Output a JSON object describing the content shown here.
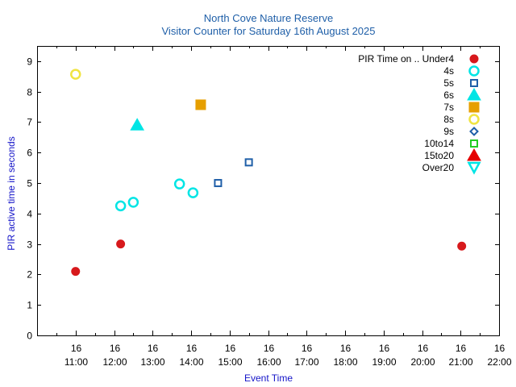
{
  "chart_data": {
    "type": "scatter",
    "title": "North Cove Nature Reserve",
    "subtitle": "Visitor Counter for Saturday 16th August 2025",
    "xlabel": "Event Time",
    "ylabel": "PIR active time in seconds",
    "xlim_hours": [
      10.0,
      22.0
    ],
    "ylim": [
      0,
      9.5
    ],
    "y_ticks": [
      0,
      1,
      2,
      3,
      4,
      5,
      6,
      7,
      8,
      9
    ],
    "x_ticks": [
      {
        "hour": 11,
        "day": "16",
        "time": "11:00"
      },
      {
        "hour": 12,
        "day": "16",
        "time": "12:00"
      },
      {
        "hour": 13,
        "day": "16",
        "time": "13:00"
      },
      {
        "hour": 14,
        "day": "16",
        "time": "14:00"
      },
      {
        "hour": 15,
        "day": "16",
        "time": "15:00"
      },
      {
        "hour": 16,
        "day": "16",
        "time": "16:00"
      },
      {
        "hour": 17,
        "day": "16",
        "time": "17:00"
      },
      {
        "hour": 18,
        "day": "16",
        "time": "18:00"
      },
      {
        "hour": 19,
        "day": "16",
        "time": "19:00"
      },
      {
        "hour": 20,
        "day": "16",
        "time": "20:00"
      },
      {
        "hour": 21,
        "day": "16",
        "time": "21:00"
      },
      {
        "hour": 22,
        "day": "16",
        "time": "22:00"
      }
    ],
    "legend_title": "PIR Time on ..",
    "legend_position": "top-right",
    "series": [
      {
        "name": "Under4",
        "marker": "circle-filled",
        "color": "#d7191c",
        "points": [
          {
            "x": 11.0,
            "y": 2.1
          },
          {
            "x": 12.17,
            "y": 3.0
          },
          {
            "x": 21.03,
            "y": 2.93
          }
        ]
      },
      {
        "name": "4s",
        "marker": "circle-open",
        "color": "#00e5e5",
        "points": [
          {
            "x": 12.17,
            "y": 4.25
          },
          {
            "x": 12.5,
            "y": 4.37
          },
          {
            "x": 13.7,
            "y": 4.97
          },
          {
            "x": 14.05,
            "y": 4.68
          }
        ]
      },
      {
        "name": "5s",
        "marker": "square-open",
        "color": "#1f5fa8",
        "points": [
          {
            "x": 14.7,
            "y": 5.0
          },
          {
            "x": 15.5,
            "y": 5.68
          }
        ]
      },
      {
        "name": "6s",
        "marker": "triangle-filled",
        "color": "#00e5e5",
        "points": [
          {
            "x": 12.6,
            "y": 6.9
          }
        ]
      },
      {
        "name": "7s",
        "marker": "square-filled",
        "color": "#e69f00",
        "points": [
          {
            "x": 14.25,
            "y": 7.57
          }
        ]
      },
      {
        "name": "8s",
        "marker": "circle-open",
        "color": "#f0e442",
        "points": [
          {
            "x": 11.0,
            "y": 8.57
          }
        ]
      },
      {
        "name": "9s",
        "marker": "diamond-open",
        "color": "#1f5fa8",
        "points": []
      },
      {
        "name": "10to14",
        "marker": "square-open",
        "color": "#22cc22",
        "points": []
      },
      {
        "name": "15to20",
        "marker": "triangle-filled",
        "color": "#e50000",
        "points": []
      },
      {
        "name": "Over20",
        "marker": "triangle-down-open",
        "color": "#00e5e5",
        "points": []
      }
    ]
  }
}
